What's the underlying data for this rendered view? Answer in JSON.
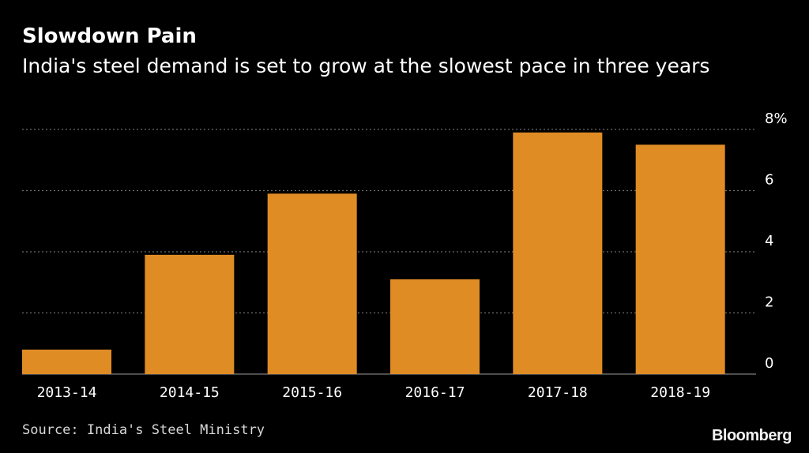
{
  "header": {
    "title": "Slowdown Pain",
    "subtitle": "India's steel demand is set to grow at the slowest pace in three years"
  },
  "footer": {
    "source": "Source: India's Steel Ministry",
    "brand": "Bloomberg"
  },
  "colors": {
    "background": "#000000",
    "bar": "#e08c25",
    "grid": "#6e6e6e",
    "text": "#ffffff"
  },
  "chart_data": {
    "type": "bar",
    "categories": [
      "2013-14",
      "2014-15",
      "2015-16",
      "2016-17",
      "2017-18",
      "2018-19"
    ],
    "values": [
      0.8,
      3.9,
      5.9,
      3.1,
      7.9,
      7.5
    ],
    "title": "Slowdown Pain",
    "subtitle": "India's steel demand is set to grow at the slowest pace in three years",
    "xlabel": "",
    "ylabel": "",
    "ylim": [
      0,
      8
    ],
    "yticks": [
      0,
      2,
      4,
      6,
      8
    ],
    "ytick_labels": [
      "0",
      "2",
      "4",
      "6",
      "8%"
    ],
    "grid": true,
    "grid_style": "dotted",
    "yaxis_position": "right",
    "legend": "none"
  }
}
